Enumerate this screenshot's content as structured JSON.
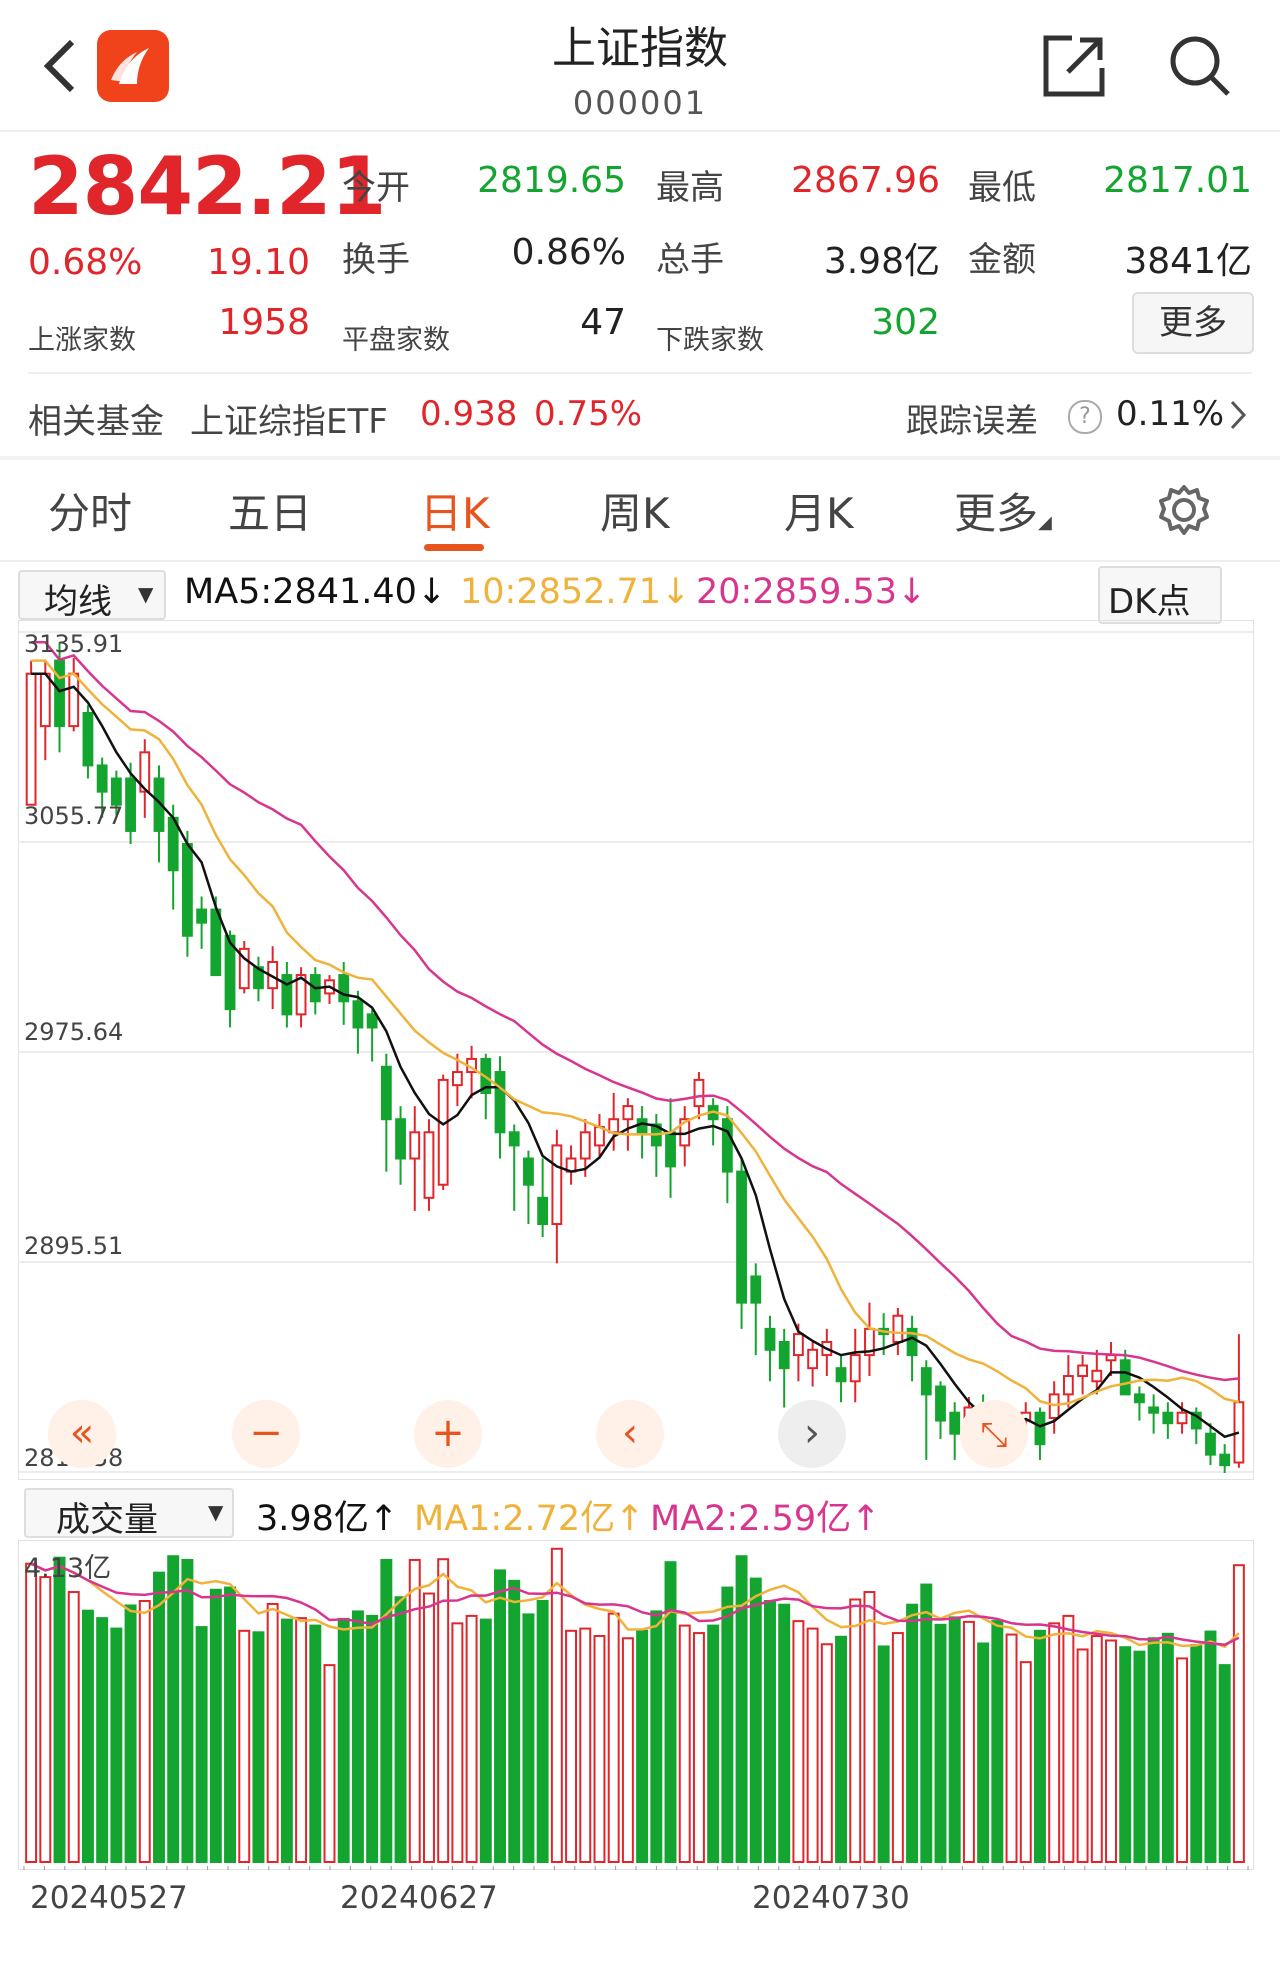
{
  "header": {
    "title": "上证指数",
    "code": "000001"
  },
  "quote": {
    "price": "2842.21",
    "change_pct": "0.68%",
    "change": "19.10",
    "open_label": "今开",
    "open": "2819.65",
    "high_label": "最高",
    "high": "2867.96",
    "low_label": "最低",
    "low": "2817.01",
    "turnover_label": "换手",
    "turnover": "0.86%",
    "volume_label": "总手",
    "volume": "3.98亿",
    "amount_label": "金额",
    "amount": "3841亿",
    "up_label": "上涨家数",
    "up": "1958",
    "flat_label": "平盘家数",
    "flat": "47",
    "down_label": "下跌家数",
    "down": "302",
    "more_label": "更多"
  },
  "fund": {
    "label": "相关基金",
    "name": "上证综指ETF",
    "price": "0.938",
    "pct": "0.75%",
    "tracking_label": "跟踪误差",
    "tracking": "0.11%"
  },
  "tabs": [
    {
      "label": "分时",
      "active": false
    },
    {
      "label": "五日",
      "active": false
    },
    {
      "label": "日K",
      "active": true
    },
    {
      "label": "周K",
      "active": false
    },
    {
      "label": "月K",
      "active": false
    },
    {
      "label": "更多",
      "active": false
    }
  ],
  "ma_bar": {
    "selector": "均线",
    "ma5": "MA5:2841.40",
    "ma10": "10:2852.71",
    "ma20": "20:2859.53",
    "dk": "DK点"
  },
  "vol_bar": {
    "selector": "成交量",
    "vol": "3.98亿",
    "ma1": "MA1:2.72亿",
    "ma2": "MA2:2.59亿"
  },
  "colors": {
    "up": "#e0262b",
    "down": "#13a52f",
    "ma5": "#111111",
    "ma10": "#f0b23a",
    "ma20": "#d8358f",
    "accent": "#e8541e"
  },
  "chart_data": {
    "type": "candlestick",
    "y_ticks": [
      "3135.91",
      "3055.77",
      "2975.64",
      "2895.51",
      "2815.38"
    ],
    "ylim": [
      2815.38,
      3135.91
    ],
    "volume_max_label": "4.13亿",
    "x_tick_labels": [
      "20240527",
      "20240627",
      "20240730"
    ],
    "candles": [
      [
        3070,
        3120,
        3070,
        3125
      ],
      [
        3100,
        3120,
        3087,
        3125
      ],
      [
        3125,
        3100,
        3090,
        3132
      ],
      [
        3100,
        3120,
        3098,
        3126
      ],
      [
        3105,
        3085,
        3080,
        3108
      ],
      [
        3085,
        3075,
        3065,
        3088
      ],
      [
        3080,
        3070,
        3066,
        3083
      ],
      [
        3080,
        3060,
        3055,
        3086
      ],
      [
        3075,
        3090,
        3065,
        3095
      ],
      [
        3080,
        3060,
        3048,
        3085
      ],
      [
        3065,
        3045,
        3030,
        3070
      ],
      [
        3055,
        3020,
        3012,
        3060
      ],
      [
        3030,
        3025,
        3015,
        3035
      ],
      [
        3030,
        3005,
        3005,
        3035
      ],
      [
        3020,
        2992,
        2985,
        3022
      ],
      [
        3000,
        3015,
        2998,
        3018
      ],
      [
        3008,
        3000,
        2995,
        3012
      ],
      [
        3000,
        3010,
        2992,
        3016
      ],
      [
        3005,
        2990,
        2985,
        3010
      ],
      [
        2990,
        3005,
        2985,
        3008
      ],
      [
        3005,
        2995,
        2990,
        3008
      ],
      [
        2998,
        3003,
        2994,
        3005
      ],
      [
        3005,
        2995,
        2986,
        3010
      ],
      [
        2995,
        2985,
        2975,
        2999
      ],
      [
        2990,
        2985,
        2972,
        2992
      ],
      [
        2970,
        2950,
        2930,
        2975
      ],
      [
        2950,
        2935,
        2925,
        2955
      ],
      [
        2935,
        2945,
        2915,
        2955
      ],
      [
        2920,
        2945,
        2915,
        2950
      ],
      [
        2925,
        2965,
        2923,
        2967
      ],
      [
        2963,
        2968,
        2955,
        2975
      ],
      [
        2968,
        2973,
        2958,
        2978
      ],
      [
        2973,
        2960,
        2950,
        2975
      ],
      [
        2968,
        2945,
        2935,
        2974
      ],
      [
        2945,
        2940,
        2915,
        2948
      ],
      [
        2935,
        2925,
        2910,
        2938
      ],
      [
        2920,
        2910,
        2905,
        2935
      ],
      [
        2910,
        2940,
        2895,
        2946
      ],
      [
        2930,
        2935,
        2925,
        2940
      ],
      [
        2935,
        2945,
        2928,
        2950
      ],
      [
        2940,
        2947,
        2935,
        2952
      ],
      [
        2945,
        2950,
        2938,
        2960
      ],
      [
        2950,
        2955,
        2938,
        2958
      ],
      [
        2950,
        2945,
        2935,
        2955
      ],
      [
        2948,
        2940,
        2928,
        2952
      ],
      [
        2945,
        2932,
        2920,
        2958
      ],
      [
        2940,
        2950,
        2932,
        2955
      ],
      [
        2955,
        2965,
        2950,
        2968
      ],
      [
        2955,
        2950,
        2940,
        2958
      ],
      [
        2950,
        2930,
        2918,
        2955
      ],
      [
        2930,
        2880,
        2870,
        2935
      ],
      [
        2890,
        2880,
        2860,
        2895
      ],
      [
        2870,
        2862,
        2850,
        2875
      ],
      [
        2865,
        2855,
        2840,
        2870
      ],
      [
        2860,
        2868,
        2850,
        2872
      ],
      [
        2855,
        2862,
        2848,
        2865
      ],
      [
        2860,
        2865,
        2852,
        2870
      ],
      [
        2855,
        2850,
        2842,
        2860
      ],
      [
        2850,
        2860,
        2842,
        2870
      ],
      [
        2860,
        2870,
        2852,
        2880
      ],
      [
        2870,
        2868,
        2860,
        2876
      ],
      [
        2865,
        2875,
        2860,
        2878
      ],
      [
        2870,
        2860,
        2850,
        2875
      ],
      [
        2855,
        2845,
        2820,
        2858
      ],
      [
        2848,
        2835,
        2828,
        2850
      ],
      [
        2838,
        2830,
        2820,
        2842
      ],
      [
        2832,
        2840,
        2826,
        2844
      ],
      [
        2840,
        2835,
        2828,
        2845
      ],
      [
        2840,
        2830,
        2820,
        2842
      ],
      [
        2830,
        2835,
        2825,
        2840
      ],
      [
        2835,
        2838,
        2830,
        2842
      ],
      [
        2838,
        2826,
        2820,
        2840
      ],
      [
        2836,
        2845,
        2830,
        2850
      ],
      [
        2845,
        2852,
        2840,
        2860
      ],
      [
        2852,
        2856,
        2845,
        2860
      ],
      [
        2850,
        2854,
        2845,
        2862
      ],
      [
        2858,
        2860,
        2852,
        2865
      ],
      [
        2858,
        2845,
        2845,
        2862
      ],
      [
        2845,
        2842,
        2835,
        2848
      ],
      [
        2840,
        2838,
        2830,
        2845
      ],
      [
        2838,
        2834,
        2828,
        2842
      ],
      [
        2834,
        2838,
        2830,
        2842
      ],
      [
        2838,
        2832,
        2826,
        2840
      ],
      [
        2830,
        2822,
        2818,
        2834
      ],
      [
        2822,
        2818,
        2815,
        2826
      ],
      [
        2819,
        2842,
        2817,
        2868
      ]
    ]
  }
}
